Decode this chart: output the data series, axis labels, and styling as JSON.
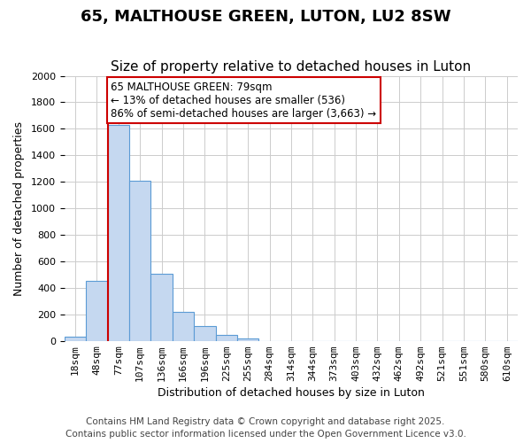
{
  "title": "65, MALTHOUSE GREEN, LUTON, LU2 8SW",
  "subtitle": "Size of property relative to detached houses in Luton",
  "xlabel": "Distribution of detached houses by size in Luton",
  "ylabel": "Number of detached properties",
  "bar_values": [
    30,
    455,
    1630,
    1210,
    505,
    220,
    110,
    45,
    20,
    0,
    0,
    0,
    0,
    0,
    0,
    0,
    0,
    0,
    0,
    0,
    0
  ],
  "bar_labels": [
    "18sqm",
    "48sqm",
    "77sqm",
    "107sqm",
    "136sqm",
    "166sqm",
    "196sqm",
    "225sqm",
    "255sqm",
    "284sqm",
    "314sqm",
    "344sqm",
    "373sqm",
    "403sqm",
    "432sqm",
    "462sqm",
    "492sqm",
    "521sqm",
    "551sqm",
    "580sqm",
    "610sqm"
  ],
  "bar_color": "#c5d8f0",
  "bar_edge_color": "#5b9bd5",
  "vline_x_index": 2,
  "vline_color": "#cc0000",
  "annotation_text": "65 MALTHOUSE GREEN: 79sqm\n← 13% of detached houses are smaller (536)\n86% of semi-detached houses are larger (3,663) →",
  "annotation_box_color": "#cc0000",
  "annotation_text_color": "#000000",
  "ylim": [
    0,
    2000
  ],
  "yticks": [
    0,
    200,
    400,
    600,
    800,
    1000,
    1200,
    1400,
    1600,
    1800,
    2000
  ],
  "footer_line1": "Contains HM Land Registry data © Crown copyright and database right 2025.",
  "footer_line2": "Contains public sector information licensed under the Open Government Licence v3.0.",
  "background_color": "#ffffff",
  "grid_color": "#cccccc",
  "title_fontsize": 13,
  "subtitle_fontsize": 11,
  "axis_label_fontsize": 9,
  "tick_fontsize": 8,
  "footer_fontsize": 7.5
}
